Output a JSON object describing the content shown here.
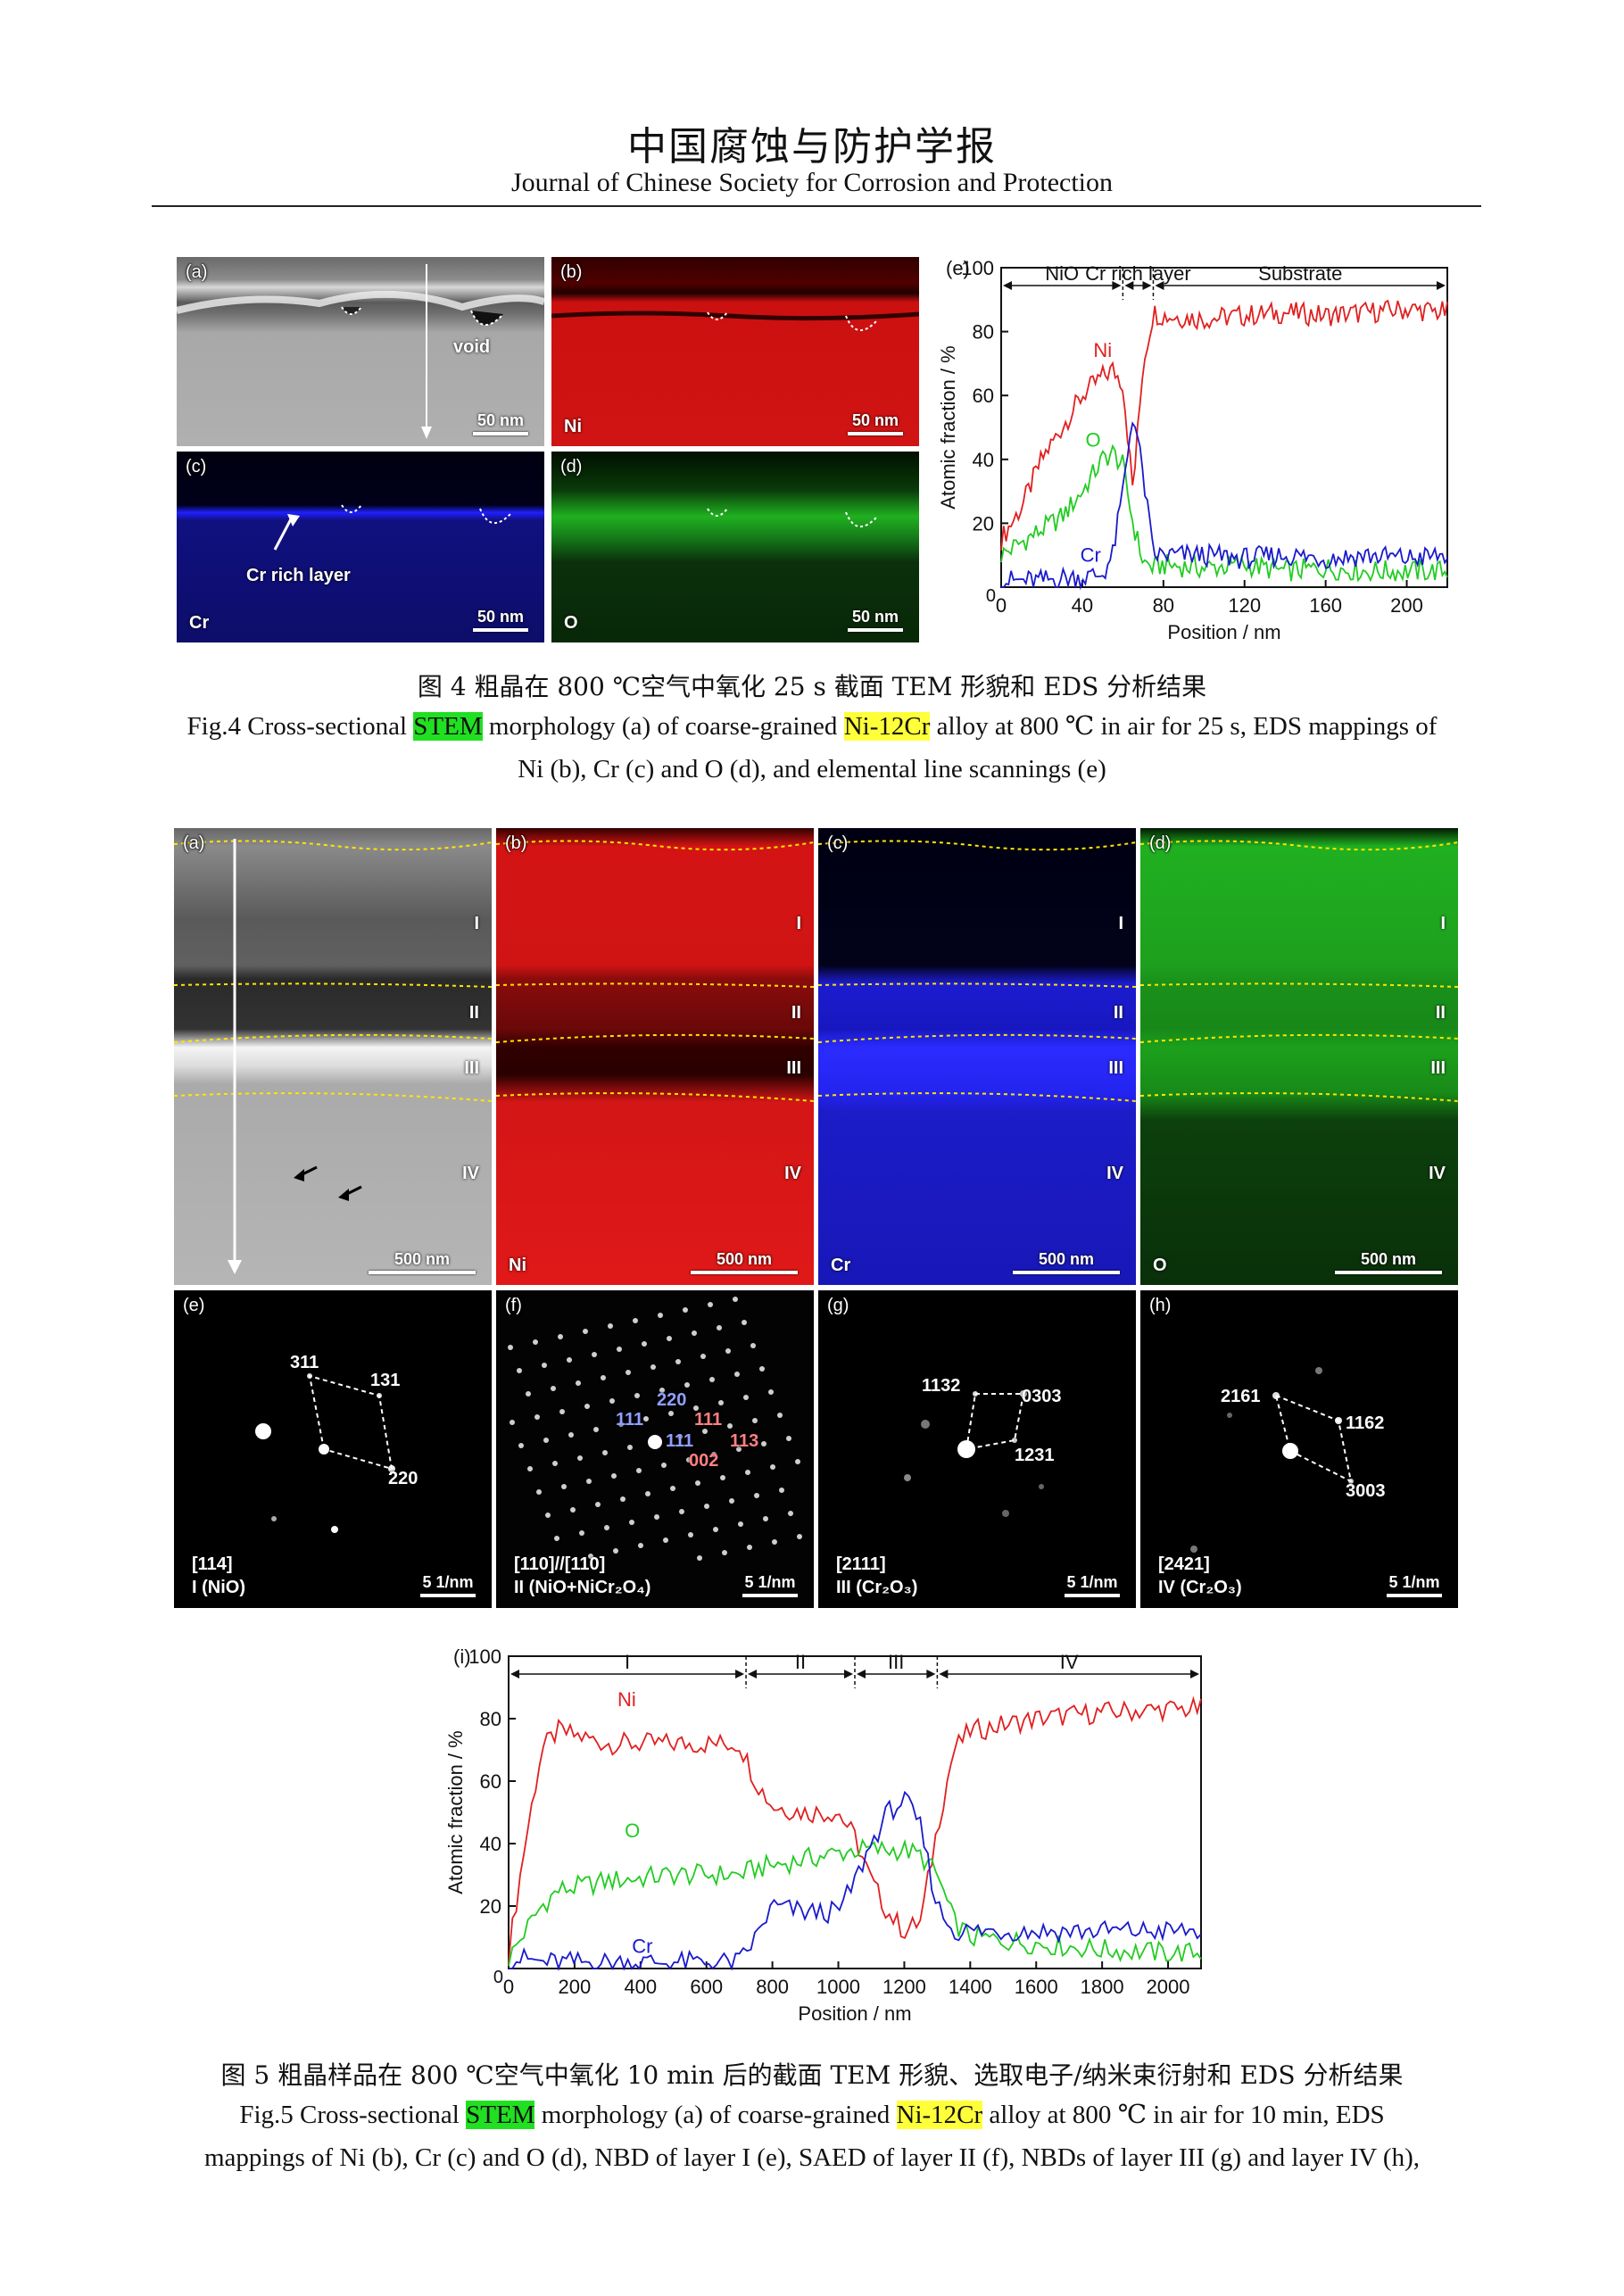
{
  "header": {
    "journal_cn": "中国腐蚀与防护学报",
    "journal_en": "Journal of Chinese Society for Corrosion and Protection"
  },
  "fig4": {
    "panels": {
      "a": {
        "label": "(a)",
        "annotation": "void",
        "scale": "50 nm"
      },
      "b": {
        "label": "(b)",
        "element": "Ni",
        "scale": "50 nm"
      },
      "c": {
        "label": "(c)",
        "element": "Cr",
        "annotation": "Cr rich layer",
        "scale": "50 nm"
      },
      "d": {
        "label": "(d)",
        "element": "O",
        "scale": "50 nm"
      }
    },
    "caption_cn": "图 4  粗晶在 800 ℃空气中氧化 25 s 截面 TEM 形貌和 EDS 分析结果",
    "caption_en": {
      "part1": "Fig.4 Cross-sectional ",
      "hl1": "STEM",
      "part2": " morphology (a) of coarse-grained ",
      "hl2": "Ni-12Cr",
      "part3": " alloy at 800 ℃ in air for 25 s, EDS mappings of",
      "line2": "Ni (b), Cr (c) and O (d), and elemental line scannings (e)"
    }
  },
  "fig5": {
    "map_panels": {
      "a": {
        "label": "(a)",
        "scale": "500 nm",
        "layers": [
          "I",
          "II",
          "III",
          "IV"
        ]
      },
      "b": {
        "label": "(b)",
        "element": "Ni",
        "scale": "500 nm",
        "layers": [
          "I",
          "II",
          "III",
          "IV"
        ]
      },
      "c": {
        "label": "(c)",
        "element": "Cr",
        "scale": "500 nm",
        "layers": [
          "I",
          "II",
          "III",
          "IV"
        ]
      },
      "d": {
        "label": "(d)",
        "element": "O",
        "scale": "500 nm",
        "layers": [
          "I",
          "II",
          "III",
          "IV"
        ]
      }
    },
    "diffraction_panels": {
      "e": {
        "label": "(e)",
        "zone": "[114]",
        "phase": "I (NiO)",
        "scale": "5 1/nm",
        "spots": [
          "311",
          "131",
          "220"
        ]
      },
      "f": {
        "label": "(f)",
        "zone": "[110]//[110]",
        "phase": "II (NiO+NiCr₂O₄)",
        "scale": "5 1/nm",
        "spots": [
          "220",
          "111",
          "111",
          "111",
          "113",
          "002"
        ]
      },
      "g": {
        "label": "(g)",
        "zone": "[2111]",
        "phase": "III (Cr₂O₃)",
        "scale": "5 1/nm",
        "spots": [
          "1132",
          "0303",
          "1231"
        ]
      },
      "h": {
        "label": "(h)",
        "zone": "[2421]",
        "phase": "IV (Cr₂O₃)",
        "scale": "5 1/nm",
        "spots": [
          "2161",
          "1162",
          "3003"
        ]
      }
    },
    "caption_cn": "图 5  粗晶样品在 800 ℃空气中氧化 10 min 后的截面 TEM 形貌、选取电子/纳米束衍射和 EDS 分析结果",
    "caption_en": {
      "part1": "Fig.5 Cross-sectional ",
      "hl1": "STEM",
      "part2": " morphology (a) of coarse-grained ",
      "hl2": "Ni-12Cr",
      "part3": " alloy at 800 ℃ in air for 10 min, EDS",
      "line2": "mappings of Ni (b), Cr (c) and O (d), NBD of layer I (e), SAED of layer II (f), NBDs of layer III (g) and layer IV (h),"
    }
  },
  "chart_data": [
    {
      "panel": "(e)",
      "type": "line",
      "xlabel": "Position / nm",
      "ylabel": "Atomic fraction / %",
      "xlim": [
        0,
        220
      ],
      "ylim": [
        0,
        100
      ],
      "xticks": [
        0,
        40,
        80,
        120,
        160,
        200
      ],
      "yticks": [
        20,
        40,
        60,
        80,
        100
      ],
      "regions": [
        {
          "name": "NiO",
          "from": 0,
          "to": 60
        },
        {
          "name": "Cr rich layer",
          "from": 60,
          "to": 75
        },
        {
          "name": "Substrate",
          "from": 75,
          "to": 220
        }
      ],
      "x": [
        0,
        10,
        20,
        30,
        40,
        50,
        55,
        60,
        65,
        70,
        75,
        80,
        100,
        120,
        140,
        160,
        180,
        200,
        220
      ],
      "series": [
        {
          "name": "Ni",
          "color": "#e02020",
          "values": [
            15,
            25,
            40,
            50,
            60,
            66,
            68,
            64,
            30,
            70,
            86,
            85,
            84,
            85,
            86,
            85,
            86,
            87,
            86
          ]
        },
        {
          "name": "O",
          "color": "#22cc22",
          "values": [
            10,
            14,
            18,
            22,
            30,
            40,
            42,
            38,
            20,
            8,
            6,
            7,
            6,
            7,
            5,
            6,
            5,
            5,
            5
          ]
        },
        {
          "name": "Cr",
          "color": "#1a1acc",
          "values": [
            2,
            2,
            2,
            3,
            3,
            4,
            10,
            30,
            55,
            35,
            10,
            10,
            10,
            9,
            10,
            9,
            10,
            9,
            10
          ]
        }
      ],
      "grid": false
    },
    {
      "panel": "(i)",
      "type": "line",
      "xlabel": "Position / nm",
      "ylabel": "Atomic fraction / %",
      "xlim": [
        0,
        2100
      ],
      "ylim": [
        0,
        100
      ],
      "xticks": [
        0,
        200,
        400,
        600,
        800,
        1000,
        1200,
        1400,
        1600,
        1800,
        2000
      ],
      "yticks": [
        20,
        40,
        60,
        80,
        100
      ],
      "regions": [
        {
          "name": "I",
          "from": 0,
          "to": 720
        },
        {
          "name": "II",
          "from": 720,
          "to": 1050
        },
        {
          "name": "III",
          "from": 1050,
          "to": 1300
        },
        {
          "name": "IV",
          "from": 1300,
          "to": 2100
        }
      ],
      "x": [
        0,
        50,
        100,
        150,
        300,
        500,
        700,
        750,
        800,
        900,
        1000,
        1050,
        1100,
        1150,
        1200,
        1250,
        1300,
        1350,
        1400,
        1500,
        1600,
        1800,
        2000,
        2100
      ],
      "series": [
        {
          "name": "Ni",
          "color": "#e02020",
          "values": [
            5,
            40,
            70,
            76,
            72,
            72,
            72,
            60,
            52,
            50,
            50,
            42,
            28,
            18,
            12,
            15,
            45,
            70,
            76,
            78,
            80,
            82,
            83,
            83
          ]
        },
        {
          "name": "O",
          "color": "#22cc22",
          "values": [
            3,
            12,
            20,
            25,
            28,
            30,
            30,
            32,
            33,
            35,
            37,
            38,
            38,
            38,
            38,
            36,
            30,
            15,
            10,
            9,
            8,
            6,
            5,
            5
          ]
        },
        {
          "name": "Cr",
          "color": "#1a1acc",
          "values": [
            3,
            3,
            2,
            2,
            2,
            2,
            2,
            10,
            20,
            18,
            18,
            28,
            40,
            50,
            54,
            45,
            20,
            12,
            12,
            12,
            12,
            12,
            12,
            12
          ]
        }
      ],
      "grid": false
    }
  ]
}
